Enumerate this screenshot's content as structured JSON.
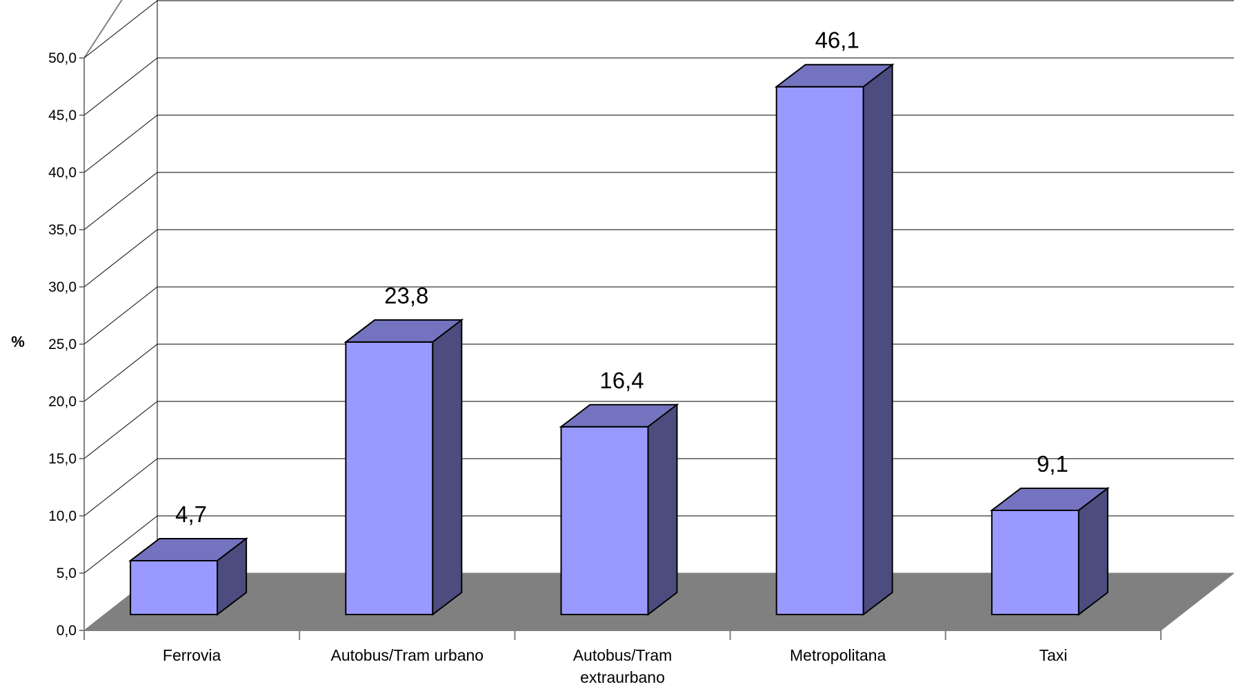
{
  "chart_data": {
    "type": "bar",
    "categories": [
      "Ferrovia",
      "Autobus/Tram urbano",
      "Autobus/Tram extraurbano",
      "Metropolitana",
      "Taxi"
    ],
    "category_labels": [
      [
        "Ferrovia"
      ],
      [
        "Autobus/Tram urbano"
      ],
      [
        "Autobus/Tram",
        "extraurbano"
      ],
      [
        "Metropolitana"
      ],
      [
        "Taxi"
      ]
    ],
    "values": [
      4.7,
      23.8,
      16.4,
      46.1,
      9.1
    ],
    "data_labels": [
      "4,7",
      "23,8",
      "16,4",
      "46,1",
      "9,1"
    ],
    "ylabel": "%",
    "ylim": [
      0,
      50
    ],
    "yticks": [
      0,
      5,
      10,
      15,
      20,
      25,
      30,
      35,
      40,
      45,
      50
    ],
    "ytick_labels": [
      "0,0",
      "5,0",
      "10,0",
      "15,0",
      "20,0",
      "25,0",
      "30,0",
      "35,0",
      "40,0",
      "45,0",
      "50,0"
    ],
    "grid": true,
    "style": "3d-column",
    "colors": {
      "bar_front": "#9999ff",
      "bar_top": "#7373bf",
      "bar_side": "#4c4c7f",
      "floor": "#808080",
      "gridline": "#000000",
      "wall_edge": "#808080"
    }
  }
}
